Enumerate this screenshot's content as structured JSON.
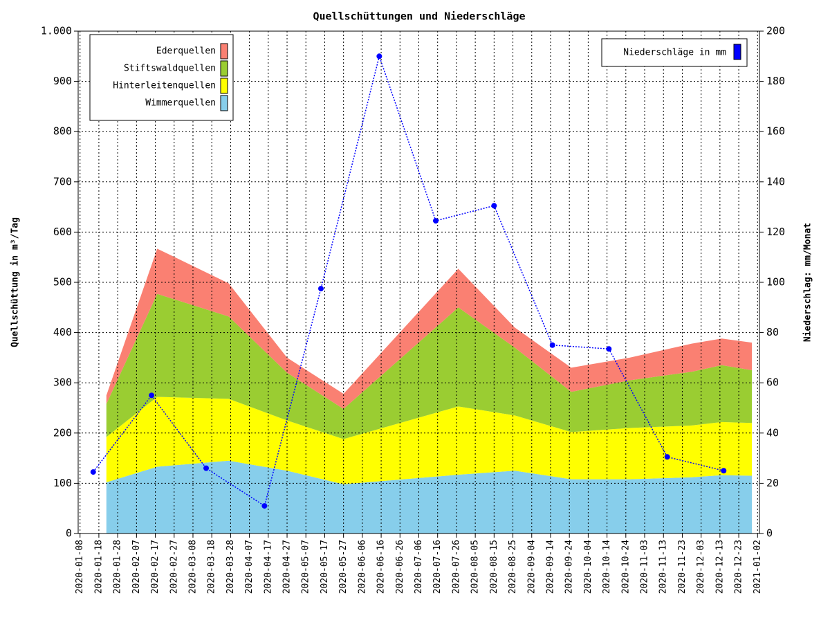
{
  "chart_data": {
    "type": "area",
    "stacked": true,
    "title": "Quellschüttungen und Niederschläge",
    "ylabel": "Quellschüttung in m³/Tag",
    "y2label": "Niederschlag: mm/Monat",
    "grid": true,
    "legend_position": "upper left",
    "x": [
      "2020-01-22",
      "2020-02-18",
      "2020-03-27",
      "2020-04-27",
      "2020-05-27",
      "2020-07-27",
      "2020-08-26",
      "2020-09-25",
      "2020-10-26",
      "2020-11-28",
      "2020-12-14",
      "2020-12-30"
    ],
    "xlim": [
      "2020-01-07",
      "2021-01-03"
    ],
    "xticks": [
      "2020-01-08",
      "2020-01-18",
      "2020-01-28",
      "2020-02-07",
      "2020-02-17",
      "2020-02-27",
      "2020-03-08",
      "2020-03-18",
      "2020-03-28",
      "2020-04-07",
      "2020-04-17",
      "2020-04-27",
      "2020-05-07",
      "2020-05-17",
      "2020-05-27",
      "2020-06-06",
      "2020-06-16",
      "2020-06-26",
      "2020-07-06",
      "2020-07-16",
      "2020-07-26",
      "2020-08-05",
      "2020-08-15",
      "2020-08-25",
      "2020-09-04",
      "2020-09-14",
      "2020-09-24",
      "2020-10-04",
      "2020-10-14",
      "2020-10-24",
      "2020-11-03",
      "2020-11-13",
      "2020-11-23",
      "2020-12-03",
      "2020-12-13",
      "2020-12-23",
      "2021-01-02"
    ],
    "ylim": [
      0,
      1000
    ],
    "yticks": [
      0,
      100,
      200,
      300,
      400,
      500,
      600,
      700,
      800,
      900,
      {
        "value": 1000,
        "label": "1.000"
      }
    ],
    "y2lim": [
      0,
      200
    ],
    "y2ticks": [
      0,
      20,
      40,
      60,
      80,
      100,
      120,
      140,
      160,
      180,
      200
    ],
    "series": [
      {
        "name": "Wimmerquellen",
        "color": "#87ceeb",
        "values": [
          102,
          133,
          145,
          125,
          98,
          117,
          125,
          108,
          108,
          112,
          116,
          115
        ]
      },
      {
        "name": "Hinterleitenquellen",
        "color": "#ffff00",
        "values": [
          90,
          139,
          123,
          100,
          90,
          136,
          110,
          94,
          102,
          103,
          106,
          105
        ]
      },
      {
        "name": "Stiftswaldquellen",
        "color": "#9acd32",
        "values": [
          66,
          205,
          164,
          95,
          60,
          197,
          135,
          80,
          95,
          107,
          113,
          105
        ]
      },
      {
        "name": "Ederquellen",
        "color": "#fa8072",
        "values": [
          17,
          90,
          66,
          30,
          30,
          77,
          40,
          48,
          45,
          56,
          53,
          55
        ]
      },
      {
        "name": "Niederschläge in mm",
        "color": "#0000ff",
        "type": "line",
        "axis": "y2",
        "x": [
          "2020-01-15",
          "2020-02-15",
          "2020-03-15",
          "2020-04-15",
          "2020-05-15",
          "2020-06-15",
          "2020-07-15",
          "2020-08-15",
          "2020-09-15",
          "2020-10-15",
          "2020-11-15",
          "2020-12-15"
        ],
        "values": [
          24.5,
          55,
          26,
          11,
          97.5,
          190,
          124.5,
          130.5,
          75,
          73.5,
          30.5,
          25
        ]
      }
    ]
  }
}
